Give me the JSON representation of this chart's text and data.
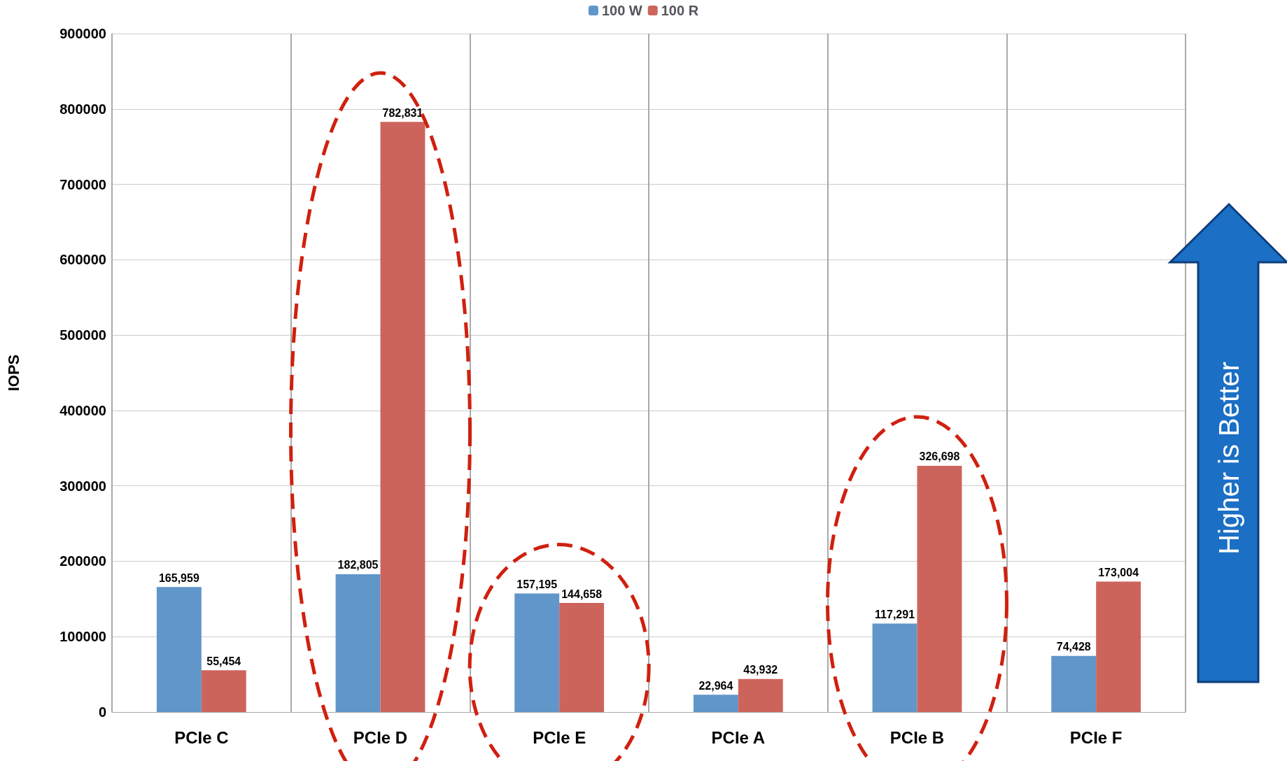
{
  "chart_data": {
    "type": "bar",
    "ylabel": "IOPS",
    "categories": [
      "PCIe C",
      "PCIe D",
      "PCIe E",
      "PCIe A",
      "PCIe B",
      "PCIe F"
    ],
    "series": [
      {
        "name": "100 W",
        "color": "#6096c9",
        "values": [
          165959,
          182805,
          157195,
          22964,
          117291,
          74428
        ]
      },
      {
        "name": "100 R",
        "color": "#cd645c",
        "values": [
          55454,
          782831,
          144658,
          43932,
          326698,
          173004
        ]
      }
    ],
    "value_labels": [
      [
        "165,959",
        "182,805",
        "157,195",
        "22,964",
        "117,291",
        "74,428"
      ],
      [
        "55,454",
        "782,831",
        "144,658",
        "43,932",
        "326,698",
        "173,004"
      ]
    ],
    "ylim": [
      0,
      900000
    ],
    "yticks": [
      0,
      100000,
      200000,
      300000,
      400000,
      500000,
      600000,
      700000,
      800000,
      900000
    ],
    "grid": true,
    "legend": "top",
    "annotations": [
      "Higher is Better"
    ]
  }
}
